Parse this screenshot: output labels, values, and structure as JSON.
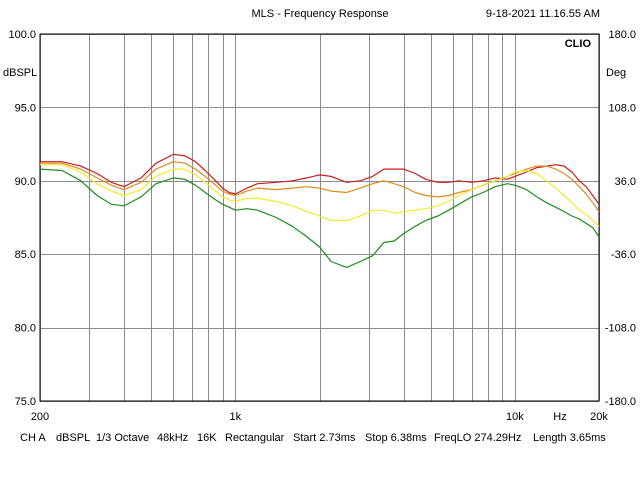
{
  "header": {
    "title": "MLS - Frequency Response",
    "timestamp": "9-18-2021 11.16.55 AM",
    "brand": "CLIO"
  },
  "footer": {
    "channel": "CH A",
    "unit": "dBSPL",
    "smoothing": "1/3 Octave",
    "sample_rate": "48kHz",
    "size": "16K",
    "window": "Rectangular",
    "start": "Start 2.73ms",
    "stop": "Stop 6.38ms",
    "freq_lo": "FreqLO 274.29Hz",
    "length": "Length 3.65ms"
  },
  "chart_data": {
    "type": "line",
    "title": "MLS - Frequency Response",
    "xscale": "log",
    "xlim": [
      200,
      20000
    ],
    "ylim": [
      75,
      100
    ],
    "ylim_right": [
      -180,
      180
    ],
    "ylabel": "dBSPL",
    "ylabel_right": "Deg",
    "xlabel_unit": "Hz",
    "x_ticks": [
      {
        "value": 200,
        "label": "200"
      },
      {
        "value": 1000,
        "label": "1k"
      },
      {
        "value": 10000,
        "label": "10k"
      },
      {
        "value": 20000,
        "label": "20k"
      }
    ],
    "x_gridlines": [
      200,
      300,
      400,
      500,
      600,
      700,
      800,
      900,
      1000,
      2000,
      3000,
      4000,
      5000,
      6000,
      7000,
      8000,
      9000,
      10000,
      20000
    ],
    "y_ticks": [
      {
        "value": 100,
        "label": "100.0"
      },
      {
        "value": 95,
        "label": "95.0"
      },
      {
        "value": 90,
        "label": "90.0"
      },
      {
        "value": 85,
        "label": "85.0"
      },
      {
        "value": 80,
        "label": "80.0"
      },
      {
        "value": 75,
        "label": "75.0"
      }
    ],
    "y_ticks_right": [
      "180.0",
      "108.0",
      "36.0",
      "-36.0",
      "-108.0",
      "-180.0"
    ],
    "series": [
      {
        "name": "red",
        "color": "#c81e1e",
        "x": [
          200,
          240,
          280,
          320,
          360,
          400,
          460,
          520,
          600,
          660,
          720,
          780,
          850,
          900,
          950,
          1000,
          1100,
          1200,
          1400,
          1600,
          1800,
          2000,
          2200,
          2500,
          2800,
          3100,
          3400,
          3700,
          4000,
          4400,
          4800,
          5300,
          5800,
          6300,
          7000,
          7700,
          8500,
          9400,
          10000,
          11000,
          12000,
          13000,
          14000,
          15000,
          16000,
          17000,
          18000,
          19000,
          20000
        ],
        "values": [
          91.3,
          91.3,
          91.0,
          90.5,
          89.9,
          89.6,
          90.2,
          91.2,
          91.8,
          91.7,
          91.3,
          90.7,
          90.0,
          89.5,
          89.2,
          89.1,
          89.5,
          89.8,
          89.9,
          90.0,
          90.2,
          90.4,
          90.3,
          89.9,
          90.0,
          90.3,
          90.8,
          90.8,
          90.8,
          90.5,
          90.1,
          89.9,
          89.9,
          90.0,
          89.9,
          90.0,
          90.2,
          90.1,
          90.3,
          90.6,
          90.9,
          91.0,
          91.1,
          91.0,
          90.6,
          90.0,
          89.6,
          89.0,
          88.4
        ]
      },
      {
        "name": "orange",
        "color": "#e08a1e",
        "x": [
          200,
          240,
          280,
          320,
          360,
          400,
          460,
          520,
          600,
          660,
          720,
          780,
          850,
          900,
          950,
          1000,
          1100,
          1200,
          1400,
          1600,
          1800,
          2000,
          2200,
          2500,
          2800,
          3100,
          3400,
          3700,
          4000,
          4400,
          4800,
          5300,
          5800,
          6300,
          7000,
          7700,
          8500,
          9400,
          10000,
          11000,
          12000,
          13000,
          14000,
          15000,
          16000,
          17000,
          18000,
          19000,
          20000
        ],
        "values": [
          91.2,
          91.2,
          90.8,
          90.2,
          89.7,
          89.4,
          89.9,
          90.8,
          91.3,
          91.2,
          90.8,
          90.3,
          89.7,
          89.3,
          89.1,
          89.0,
          89.3,
          89.5,
          89.4,
          89.5,
          89.6,
          89.5,
          89.3,
          89.2,
          89.5,
          89.8,
          90.0,
          89.8,
          89.6,
          89.2,
          89.0,
          88.9,
          89.0,
          89.2,
          89.4,
          89.7,
          90.0,
          90.3,
          90.5,
          90.8,
          91.0,
          91.0,
          90.8,
          90.5,
          90.1,
          89.6,
          89.1,
          88.5,
          87.9
        ]
      },
      {
        "name": "yellow",
        "color": "#f2ea28",
        "x": [
          200,
          240,
          280,
          320,
          360,
          400,
          460,
          520,
          600,
          660,
          720,
          780,
          850,
          900,
          950,
          1000,
          1100,
          1200,
          1400,
          1600,
          1800,
          2000,
          2200,
          2500,
          2800,
          3100,
          3400,
          3700,
          4000,
          4400,
          4800,
          5300,
          5800,
          6300,
          7000,
          7700,
          8500,
          9400,
          10000,
          11000,
          12000,
          13000,
          14000,
          15000,
          16000,
          17000,
          18000,
          19000,
          20000
        ],
        "values": [
          91.1,
          91.1,
          90.6,
          89.8,
          89.3,
          89.0,
          89.4,
          90.3,
          90.8,
          90.8,
          90.4,
          89.9,
          89.3,
          88.9,
          88.7,
          88.6,
          88.8,
          88.8,
          88.6,
          88.3,
          87.9,
          87.6,
          87.3,
          87.3,
          87.6,
          88.0,
          88.0,
          87.8,
          87.9,
          88.0,
          88.1,
          88.3,
          88.6,
          89.0,
          89.4,
          89.7,
          90.0,
          90.3,
          90.6,
          90.7,
          90.5,
          90.0,
          89.5,
          89.0,
          88.5,
          88.0,
          87.7,
          87.3,
          86.9
        ]
      },
      {
        "name": "green",
        "color": "#1e8c1e",
        "x": [
          200,
          240,
          280,
          320,
          360,
          400,
          460,
          520,
          600,
          660,
          720,
          780,
          850,
          900,
          950,
          1000,
          1100,
          1200,
          1400,
          1600,
          1800,
          2000,
          2200,
          2500,
          2800,
          3100,
          3400,
          3700,
          4000,
          4400,
          4800,
          5300,
          5800,
          6300,
          7000,
          7700,
          8500,
          9400,
          10000,
          11000,
          12000,
          13000,
          14000,
          15000,
          16000,
          17000,
          18000,
          19000,
          20000
        ],
        "values": [
          90.8,
          90.7,
          90.0,
          89.0,
          88.4,
          88.3,
          88.9,
          89.8,
          90.2,
          90.1,
          89.7,
          89.2,
          88.7,
          88.4,
          88.2,
          88.0,
          88.1,
          88.0,
          87.5,
          86.9,
          86.2,
          85.5,
          84.5,
          84.1,
          84.5,
          84.9,
          85.8,
          85.9,
          86.4,
          86.9,
          87.3,
          87.6,
          88.0,
          88.4,
          88.9,
          89.2,
          89.6,
          89.8,
          89.7,
          89.4,
          88.9,
          88.5,
          88.2,
          87.9,
          87.6,
          87.4,
          87.1,
          86.8,
          86.2
        ]
      }
    ]
  }
}
